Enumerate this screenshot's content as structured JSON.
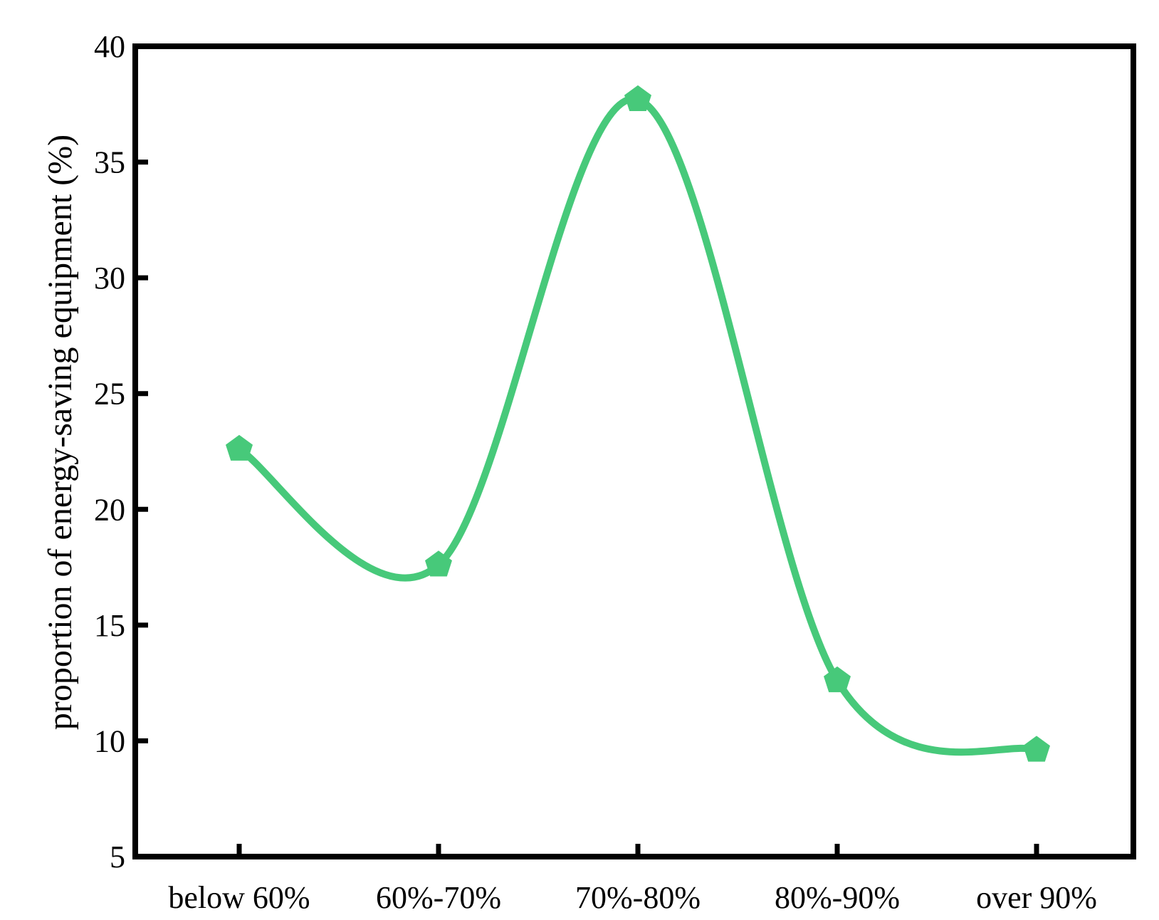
{
  "chart_data": {
    "type": "line",
    "title": "",
    "xlabel": "",
    "ylabel": "proportion of energy-saving equipment (%)",
    "categories": [
      "below 60%",
      "60%-70%",
      "70%-80%",
      "80%-90%",
      "over 90%"
    ],
    "series": [
      {
        "values": [
          22.6,
          17.6,
          37.7,
          12.6,
          9.6
        ],
        "color": "#47c97a",
        "marker": "pentagon",
        "smooth": true
      }
    ],
    "ylim": [
      5,
      40
    ],
    "yticks": [
      5,
      10,
      15,
      20,
      25,
      30,
      35,
      40
    ],
    "grid": false,
    "legend": "none"
  }
}
